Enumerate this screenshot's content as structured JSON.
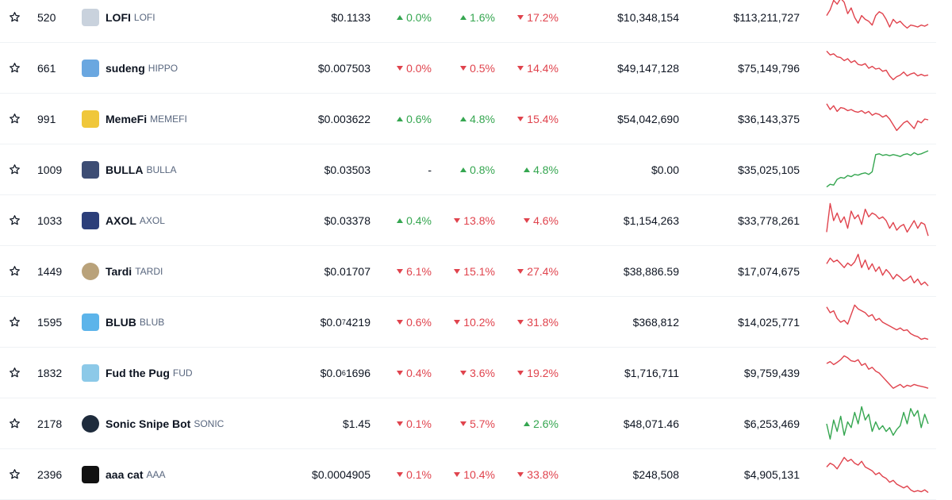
{
  "rows": [
    {
      "rank": "520",
      "name": "LOFI",
      "symbol": "LOFI",
      "price": "$0.1133",
      "p1h": "0.0%",
      "p1h_dir": "up",
      "p24h": "1.6%",
      "p24h_dir": "up",
      "p7d": "17.2%",
      "p7d_dir": "down",
      "volume": "$10,348,154",
      "market_cap": "$113,211,727",
      "logo_color": "#c9d2dd",
      "logo_icon": "lofi-yeti-logo-icon",
      "spark_color": "#e0434d",
      "spark": [
        0.55,
        0.7,
        0.95,
        0.85,
        1.0,
        0.9,
        0.6,
        0.75,
        0.5,
        0.35,
        0.55,
        0.45,
        0.4,
        0.3,
        0.55,
        0.65,
        0.6,
        0.45,
        0.25,
        0.45,
        0.35,
        0.4,
        0.3,
        0.22,
        0.3,
        0.28,
        0.25,
        0.3,
        0.27,
        0.32
      ]
    },
    {
      "rank": "661",
      "name": "sudeng",
      "symbol": "HIPPO",
      "price": "$0.007503",
      "p1h": "0.0%",
      "p1h_dir": "down",
      "p24h": "0.5%",
      "p24h_dir": "down",
      "p7d": "14.4%",
      "p7d_dir": "down",
      "volume": "$49,147,128",
      "market_cap": "$75,149,796",
      "logo_color": "#6aa7e0",
      "logo_icon": "hippo-logo-icon",
      "spark_color": "#e0434d",
      "spark": [
        0.95,
        0.85,
        0.88,
        0.8,
        0.78,
        0.7,
        0.75,
        0.65,
        0.7,
        0.6,
        0.58,
        0.62,
        0.5,
        0.55,
        0.48,
        0.5,
        0.42,
        0.45,
        0.3,
        0.2,
        0.28,
        0.32,
        0.4,
        0.3,
        0.35,
        0.38,
        0.3,
        0.34,
        0.3,
        0.32
      ]
    },
    {
      "rank": "991",
      "name": "MemeFi",
      "symbol": "MEMEFI",
      "price": "$0.003622",
      "p1h": "0.6%",
      "p1h_dir": "up",
      "p24h": "4.8%",
      "p24h_dir": "up",
      "p7d": "15.4%",
      "p7d_dir": "down",
      "volume": "$54,042,690",
      "market_cap": "$36,143,375",
      "logo_color": "#f0c73a",
      "logo_icon": "memefi-logo-icon",
      "spark_color": "#e0434d",
      "spark": [
        0.9,
        0.75,
        0.85,
        0.7,
        0.8,
        0.78,
        0.72,
        0.75,
        0.7,
        0.68,
        0.72,
        0.65,
        0.7,
        0.6,
        0.65,
        0.62,
        0.55,
        0.6,
        0.5,
        0.35,
        0.2,
        0.3,
        0.4,
        0.45,
        0.35,
        0.25,
        0.45,
        0.4,
        0.5,
        0.48
      ]
    },
    {
      "rank": "1009",
      "name": "BULLA",
      "symbol": "BULLA",
      "price": "$0.03503",
      "p1h": "-",
      "p1h_dir": "none",
      "p24h": "0.8%",
      "p24h_dir": "up",
      "p7d": "4.8%",
      "p7d_dir": "up",
      "volume": "$0.00",
      "market_cap": "$35,025,105",
      "logo_color": "#3d4d74",
      "logo_icon": "bulla-bull-logo-icon",
      "spark_color": "#35a650",
      "spark": [
        0.05,
        0.12,
        0.1,
        0.25,
        0.3,
        0.28,
        0.35,
        0.32,
        0.38,
        0.36,
        0.4,
        0.42,
        0.38,
        0.45,
        0.9,
        0.92,
        0.88,
        0.9,
        0.87,
        0.9,
        0.88,
        0.85,
        0.9,
        0.92,
        0.88,
        0.95,
        0.9,
        0.92,
        0.96,
        1.0
      ]
    },
    {
      "rank": "1033",
      "name": "AXOL",
      "symbol": "AXOL",
      "price": "$0.03378",
      "p1h": "0.4%",
      "p1h_dir": "up",
      "p24h": "13.8%",
      "p24h_dir": "down",
      "p7d": "4.6%",
      "p7d_dir": "down",
      "volume": "$1,154,263",
      "market_cap": "$33,778,261",
      "logo_color": "#2c3f7a",
      "logo_icon": "axol-logo-icon",
      "spark_color": "#e0434d",
      "spark": [
        0.2,
        0.95,
        0.5,
        0.7,
        0.45,
        0.6,
        0.3,
        0.75,
        0.55,
        0.65,
        0.4,
        0.8,
        0.6,
        0.7,
        0.65,
        0.55,
        0.6,
        0.5,
        0.3,
        0.45,
        0.25,
        0.35,
        0.4,
        0.2,
        0.35,
        0.5,
        0.3,
        0.45,
        0.4,
        0.1
      ]
    },
    {
      "rank": "1449",
      "name": "Tardi",
      "symbol": "TARDI",
      "price": "$0.01707",
      "p1h": "6.1%",
      "p1h_dir": "down",
      "p24h": "15.1%",
      "p24h_dir": "down",
      "p7d": "27.4%",
      "p7d_dir": "down",
      "volume": "$38,886.59",
      "market_cap": "$17,074,675",
      "logo_color": "#b9a27a",
      "logo_icon": "tardi-logo-icon",
      "spark_color": "#e0434d",
      "spark": [
        0.7,
        0.85,
        0.75,
        0.8,
        0.7,
        0.6,
        0.72,
        0.65,
        0.75,
        0.95,
        0.6,
        0.8,
        0.55,
        0.7,
        0.5,
        0.62,
        0.4,
        0.55,
        0.45,
        0.3,
        0.42,
        0.35,
        0.25,
        0.3,
        0.38,
        0.2,
        0.3,
        0.15,
        0.22,
        0.12
      ]
    },
    {
      "rank": "1595",
      "name": "BLUB",
      "symbol": "BLUB",
      "price_pre": "$0.0",
      "price_sub": "7",
      "price_post": "4219",
      "price": "$0.0₇4219",
      "p1h": "0.6%",
      "p1h_dir": "down",
      "p24h": "10.2%",
      "p24h_dir": "down",
      "p7d": "31.8%",
      "p7d_dir": "down",
      "volume": "$368,812",
      "market_cap": "$14,025,771",
      "logo_color": "#5cb4ea",
      "logo_icon": "blub-fish-logo-icon",
      "spark_color": "#e0434d",
      "spark": [
        0.9,
        0.75,
        0.8,
        0.6,
        0.5,
        0.55,
        0.45,
        0.7,
        0.95,
        0.85,
        0.8,
        0.75,
        0.65,
        0.7,
        0.55,
        0.6,
        0.5,
        0.45,
        0.4,
        0.35,
        0.3,
        0.35,
        0.28,
        0.3,
        0.2,
        0.15,
        0.12,
        0.05,
        0.08,
        0.05
      ]
    },
    {
      "rank": "1832",
      "name": "Fud the Pug",
      "symbol": "FUD",
      "price_pre": "$0.0",
      "price_sub": "6",
      "price_post": "1696",
      "price": "$0.0₆1696",
      "p1h": "0.4%",
      "p1h_dir": "down",
      "p24h": "3.6%",
      "p24h_dir": "down",
      "p7d": "19.2%",
      "p7d_dir": "down",
      "volume": "$1,716,711",
      "market_cap": "$9,759,439",
      "logo_color": "#8cc9e8",
      "logo_icon": "pug-logo-icon",
      "spark_color": "#e0434d",
      "spark": [
        0.75,
        0.8,
        0.72,
        0.78,
        0.85,
        0.95,
        0.9,
        0.82,
        0.8,
        0.85,
        0.7,
        0.75,
        0.6,
        0.65,
        0.55,
        0.5,
        0.4,
        0.3,
        0.2,
        0.1,
        0.15,
        0.2,
        0.12,
        0.18,
        0.15,
        0.2,
        0.17,
        0.15,
        0.13,
        0.1
      ]
    },
    {
      "rank": "2178",
      "name": "Sonic Snipe Bot",
      "symbol": "SONIC",
      "price": "$1.45",
      "p1h": "0.1%",
      "p1h_dir": "down",
      "p24h": "5.7%",
      "p24h_dir": "down",
      "p7d": "2.6%",
      "p7d_dir": "up",
      "volume": "$48,071.46",
      "market_cap": "$6,253,469",
      "logo_color": "#1e2b3c",
      "logo_icon": "sonic-logo-icon",
      "spark_color": "#35a650",
      "spark": [
        0.5,
        0.1,
        0.6,
        0.3,
        0.7,
        0.2,
        0.55,
        0.4,
        0.8,
        0.5,
        0.95,
        0.6,
        0.75,
        0.3,
        0.55,
        0.35,
        0.45,
        0.3,
        0.4,
        0.2,
        0.35,
        0.45,
        0.8,
        0.5,
        0.9,
        0.7,
        0.85,
        0.4,
        0.75,
        0.5
      ]
    },
    {
      "rank": "2396",
      "name": "aaa cat",
      "symbol": "AAA",
      "price": "$0.0004905",
      "p1h": "0.1%",
      "p1h_dir": "down",
      "p24h": "10.4%",
      "p24h_dir": "down",
      "p7d": "33.8%",
      "p7d_dir": "down",
      "volume": "$248,508",
      "market_cap": "$4,905,131",
      "logo_color": "#111111",
      "logo_icon": "cat-logo-icon",
      "spark_color": "#e0434d",
      "spark": [
        0.7,
        0.8,
        0.75,
        0.65,
        0.8,
        0.95,
        0.85,
        0.9,
        0.8,
        0.75,
        0.85,
        0.7,
        0.65,
        0.6,
        0.5,
        0.55,
        0.45,
        0.4,
        0.3,
        0.35,
        0.25,
        0.2,
        0.15,
        0.2,
        0.1,
        0.05,
        0.08,
        0.05,
        0.1,
        0.03
      ]
    }
  ]
}
